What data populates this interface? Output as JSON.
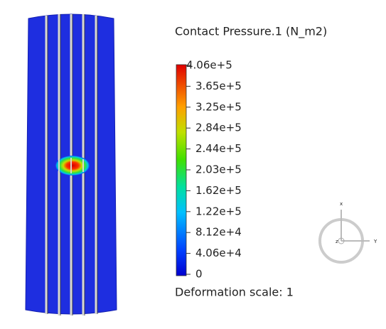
{
  "legend": {
    "title": "Contact Pressure.1 (N_m2)",
    "labels": [
      "4.06e+5",
      "3.65e+5",
      "3.25e+5",
      "2.84e+5",
      "2.44e+5",
      "2.03e+5",
      "1.62e+5",
      "1.22e+5",
      "8.12e+4",
      "4.06e+4",
      "0"
    ]
  },
  "footer": "Deformation scale: 1",
  "triad": {
    "x": "x",
    "y": "Y",
    "z": "z"
  }
}
